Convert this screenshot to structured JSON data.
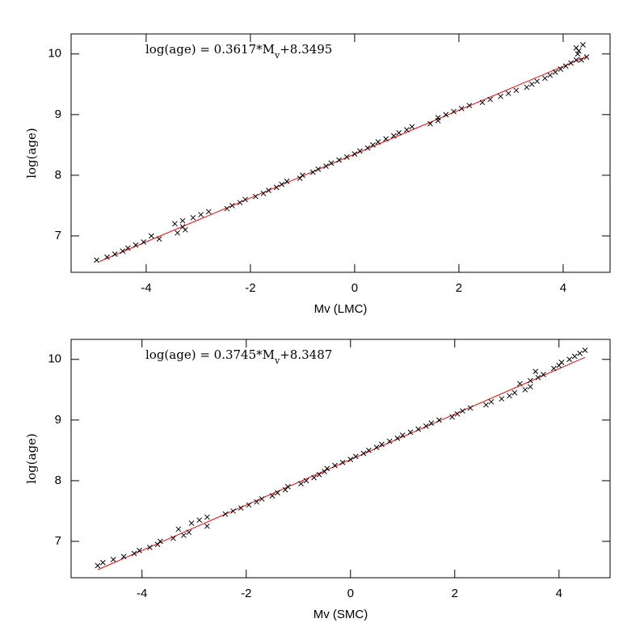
{
  "chart_data": [
    {
      "type": "scatter",
      "xlabel": "Mv (LMC)",
      "ylabel": "log(age)",
      "annotation": {
        "text": "log(age) = 0.3617*M",
        "subscript": "v",
        "suffix": "+8.3495"
      },
      "xlim": [
        -5.44,
        4.9
      ],
      "ylim": [
        6.4,
        10.33
      ],
      "xticks": [
        -4,
        -2,
        0,
        2,
        4
      ],
      "yticks": [
        7,
        8,
        9,
        10
      ],
      "points": {
        "color": "#000000",
        "marker": "x",
        "x": [
          -4.95,
          -4.75,
          -4.6,
          -4.45,
          -4.35,
          -4.2,
          -4.05,
          -3.9,
          -3.75,
          -3.45,
          -3.4,
          -3.3,
          -3.3,
          -3.25,
          -3.1,
          -2.95,
          -2.8,
          -2.45,
          -2.35,
          -2.2,
          -2.1,
          -1.9,
          -1.75,
          -1.65,
          -1.5,
          -1.4,
          -1.3,
          -1.05,
          -1.0,
          -0.8,
          -0.7,
          -0.55,
          -0.45,
          -0.3,
          -0.15,
          0.0,
          0.1,
          0.25,
          0.35,
          0.45,
          0.6,
          0.75,
          0.85,
          1.0,
          1.1,
          1.45,
          1.6,
          1.6,
          1.75,
          1.9,
          2.05,
          2.2,
          2.45,
          2.6,
          2.8,
          2.95,
          3.1,
          3.3,
          3.4,
          3.5,
          3.65,
          3.75,
          3.85,
          3.95,
          4.05,
          4.15,
          4.25,
          4.25,
          4.28,
          4.3,
          4.35,
          4.38,
          4.45
        ],
        "values": [
          6.6,
          6.65,
          6.7,
          6.75,
          6.8,
          6.85,
          6.9,
          7.0,
          6.95,
          7.2,
          7.05,
          7.25,
          7.15,
          7.1,
          7.3,
          7.35,
          7.4,
          7.45,
          7.5,
          7.55,
          7.6,
          7.65,
          7.7,
          7.75,
          7.8,
          7.85,
          7.9,
          7.95,
          8.0,
          8.05,
          8.1,
          8.15,
          8.2,
          8.25,
          8.3,
          8.35,
          8.4,
          8.45,
          8.5,
          8.55,
          8.6,
          8.65,
          8.7,
          8.75,
          8.8,
          8.85,
          8.9,
          8.95,
          9.0,
          9.05,
          9.1,
          9.15,
          9.2,
          9.25,
          9.3,
          9.35,
          9.4,
          9.45,
          9.5,
          9.55,
          9.6,
          9.65,
          9.7,
          9.75,
          9.8,
          9.85,
          9.9,
          10.1,
          10.0,
          10.05,
          9.9,
          10.15,
          9.95
        ]
      },
      "fit": {
        "color": "#ff0000",
        "x": [
          -4.9,
          4.45
        ],
        "values": [
          6.577,
          9.959
        ]
      }
    },
    {
      "type": "scatter",
      "xlabel": "Mv (SMC)",
      "ylabel": "log(age)",
      "annotation": {
        "text": "log(age) = 0.3745*M",
        "subscript": "v",
        "suffix": "+8.3487"
      },
      "xlim": [
        -5.36,
        4.98
      ],
      "ylim": [
        6.4,
        10.33
      ],
      "xticks": [
        -4,
        -2,
        0,
        2,
        4
      ],
      "yticks": [
        7,
        8,
        9,
        10
      ],
      "points": {
        "color": "#000000",
        "marker": "x",
        "x": [
          -4.85,
          -4.75,
          -4.55,
          -4.35,
          -4.15,
          -4.05,
          -3.85,
          -3.7,
          -3.65,
          -3.4,
          -3.3,
          -3.2,
          -3.1,
          -3.05,
          -2.9,
          -2.75,
          -2.75,
          -2.4,
          -2.25,
          -2.1,
          -1.95,
          -1.8,
          -1.7,
          -1.5,
          -1.4,
          -1.25,
          -1.2,
          -0.95,
          -0.85,
          -0.7,
          -0.6,
          -0.5,
          -0.45,
          -0.3,
          -0.15,
          0.0,
          0.1,
          0.25,
          0.35,
          0.5,
          0.6,
          0.75,
          0.9,
          1.0,
          1.15,
          1.3,
          1.45,
          1.55,
          1.7,
          1.95,
          2.05,
          2.15,
          2.3,
          2.6,
          2.7,
          2.9,
          3.05,
          3.15,
          3.25,
          3.35,
          3.45,
          3.45,
          3.55,
          3.6,
          3.7,
          3.9,
          4.0,
          4.05,
          4.2,
          4.3,
          4.4,
          4.5
        ],
        "values": [
          6.6,
          6.65,
          6.7,
          6.75,
          6.8,
          6.85,
          6.9,
          6.95,
          7.0,
          7.05,
          7.2,
          7.1,
          7.15,
          7.3,
          7.35,
          7.25,
          7.4,
          7.45,
          7.5,
          7.55,
          7.6,
          7.65,
          7.7,
          7.75,
          7.8,
          7.85,
          7.9,
          7.95,
          8.0,
          8.05,
          8.1,
          8.15,
          8.2,
          8.25,
          8.3,
          8.35,
          8.4,
          8.45,
          8.5,
          8.55,
          8.6,
          8.65,
          8.7,
          8.75,
          8.8,
          8.85,
          8.9,
          8.95,
          9.0,
          9.05,
          9.1,
          9.15,
          9.2,
          9.25,
          9.3,
          9.35,
          9.4,
          9.45,
          9.6,
          9.5,
          9.55,
          9.65,
          9.8,
          9.7,
          9.75,
          9.85,
          9.9,
          9.95,
          10.0,
          10.05,
          10.1,
          10.15
        ]
      },
      "fit": {
        "color": "#ff0000",
        "x": [
          -4.85,
          4.5
        ],
        "values": [
          6.5323,
          10.034
        ]
      }
    }
  ]
}
